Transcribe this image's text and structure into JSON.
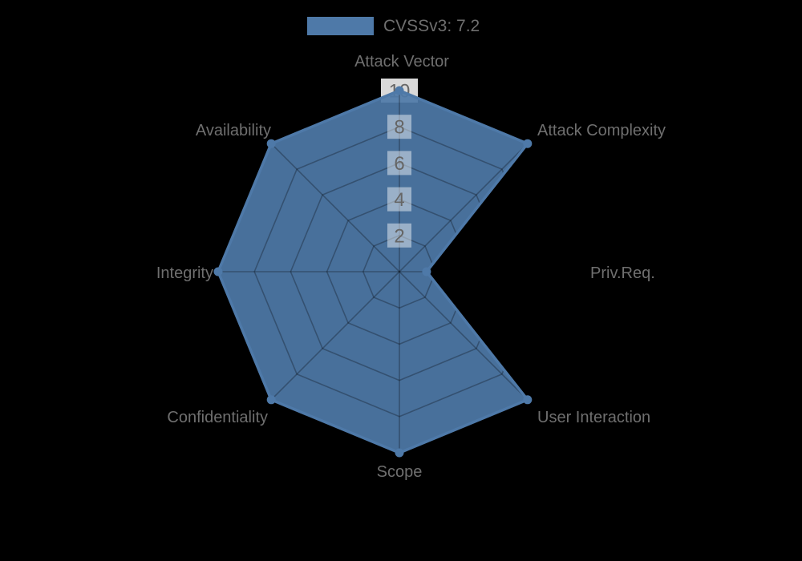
{
  "legend": {
    "label": "CVSSv3: 7.2"
  },
  "chart_data": {
    "type": "radar",
    "title": "",
    "legend_position": "top",
    "grid": true,
    "categories": [
      "Attack Vector",
      "Attack Complexity",
      "Priv.Req.",
      "User Interaction",
      "Scope",
      "Confidentiality",
      "Integrity",
      "Availability"
    ],
    "series": [
      {
        "name": "CVSSv3: 7.2",
        "values": [
          10,
          10,
          1.5,
          10,
          10,
          10,
          10,
          10
        ],
        "color": "#4e79a8",
        "fill_color": "rgba(78,121,168,0.92)"
      }
    ],
    "ticks": [
      "2",
      "4",
      "6",
      "8",
      "10"
    ],
    "rmin": 0,
    "rmax": 10
  },
  "colors": {
    "background": "#000000",
    "category_label_text": "#6f6f6f",
    "tick_text": "#666666",
    "tick_backdrop_inner": "rgba(255,255,255,0.45)",
    "tick_backdrop_outer": "rgba(255,255,255,0.85)",
    "grid_line": "rgba(0,0,0,0.28)",
    "series_color": "#4e79a8"
  }
}
